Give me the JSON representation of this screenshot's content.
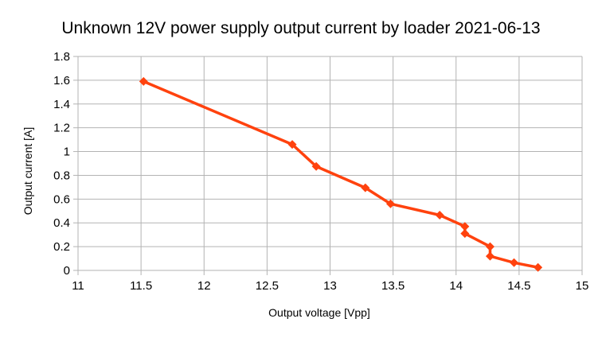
{
  "chart_data": {
    "type": "scatter",
    "title": "Unknown 12V power supply output current by loader 2021-06-13",
    "xlabel": "Output voltage [Vpp]",
    "ylabel": "Output current [A]",
    "xlim": [
      11,
      15
    ],
    "ylim": [
      0,
      1.8
    ],
    "xticks": [
      "11",
      "11.5",
      "12",
      "12.5",
      "13",
      "13.5",
      "14",
      "14.5",
      "15"
    ],
    "yticks": [
      "0",
      "0.2",
      "0.4",
      "0.6",
      "0.8",
      "1",
      "1.2",
      "1.4",
      "1.6",
      "1.8"
    ],
    "grid": true,
    "legend": "none",
    "series": [
      {
        "color": "#ff420e",
        "marker": "diamond",
        "lines": true,
        "points": [
          {
            "x": 11.52,
            "y": 1.59
          },
          {
            "x": 12.7,
            "y": 1.06
          },
          {
            "x": 12.89,
            "y": 0.875
          },
          {
            "x": 13.28,
            "y": 0.695
          },
          {
            "x": 13.48,
            "y": 0.56
          },
          {
            "x": 13.87,
            "y": 0.465
          },
          {
            "x": 14.07,
            "y": 0.37
          },
          {
            "x": 14.07,
            "y": 0.31
          },
          {
            "x": 14.27,
            "y": 0.2
          },
          {
            "x": 14.27,
            "y": 0.12
          },
          {
            "x": 14.46,
            "y": 0.065
          },
          {
            "x": 14.65,
            "y": 0.025
          }
        ]
      }
    ]
  }
}
